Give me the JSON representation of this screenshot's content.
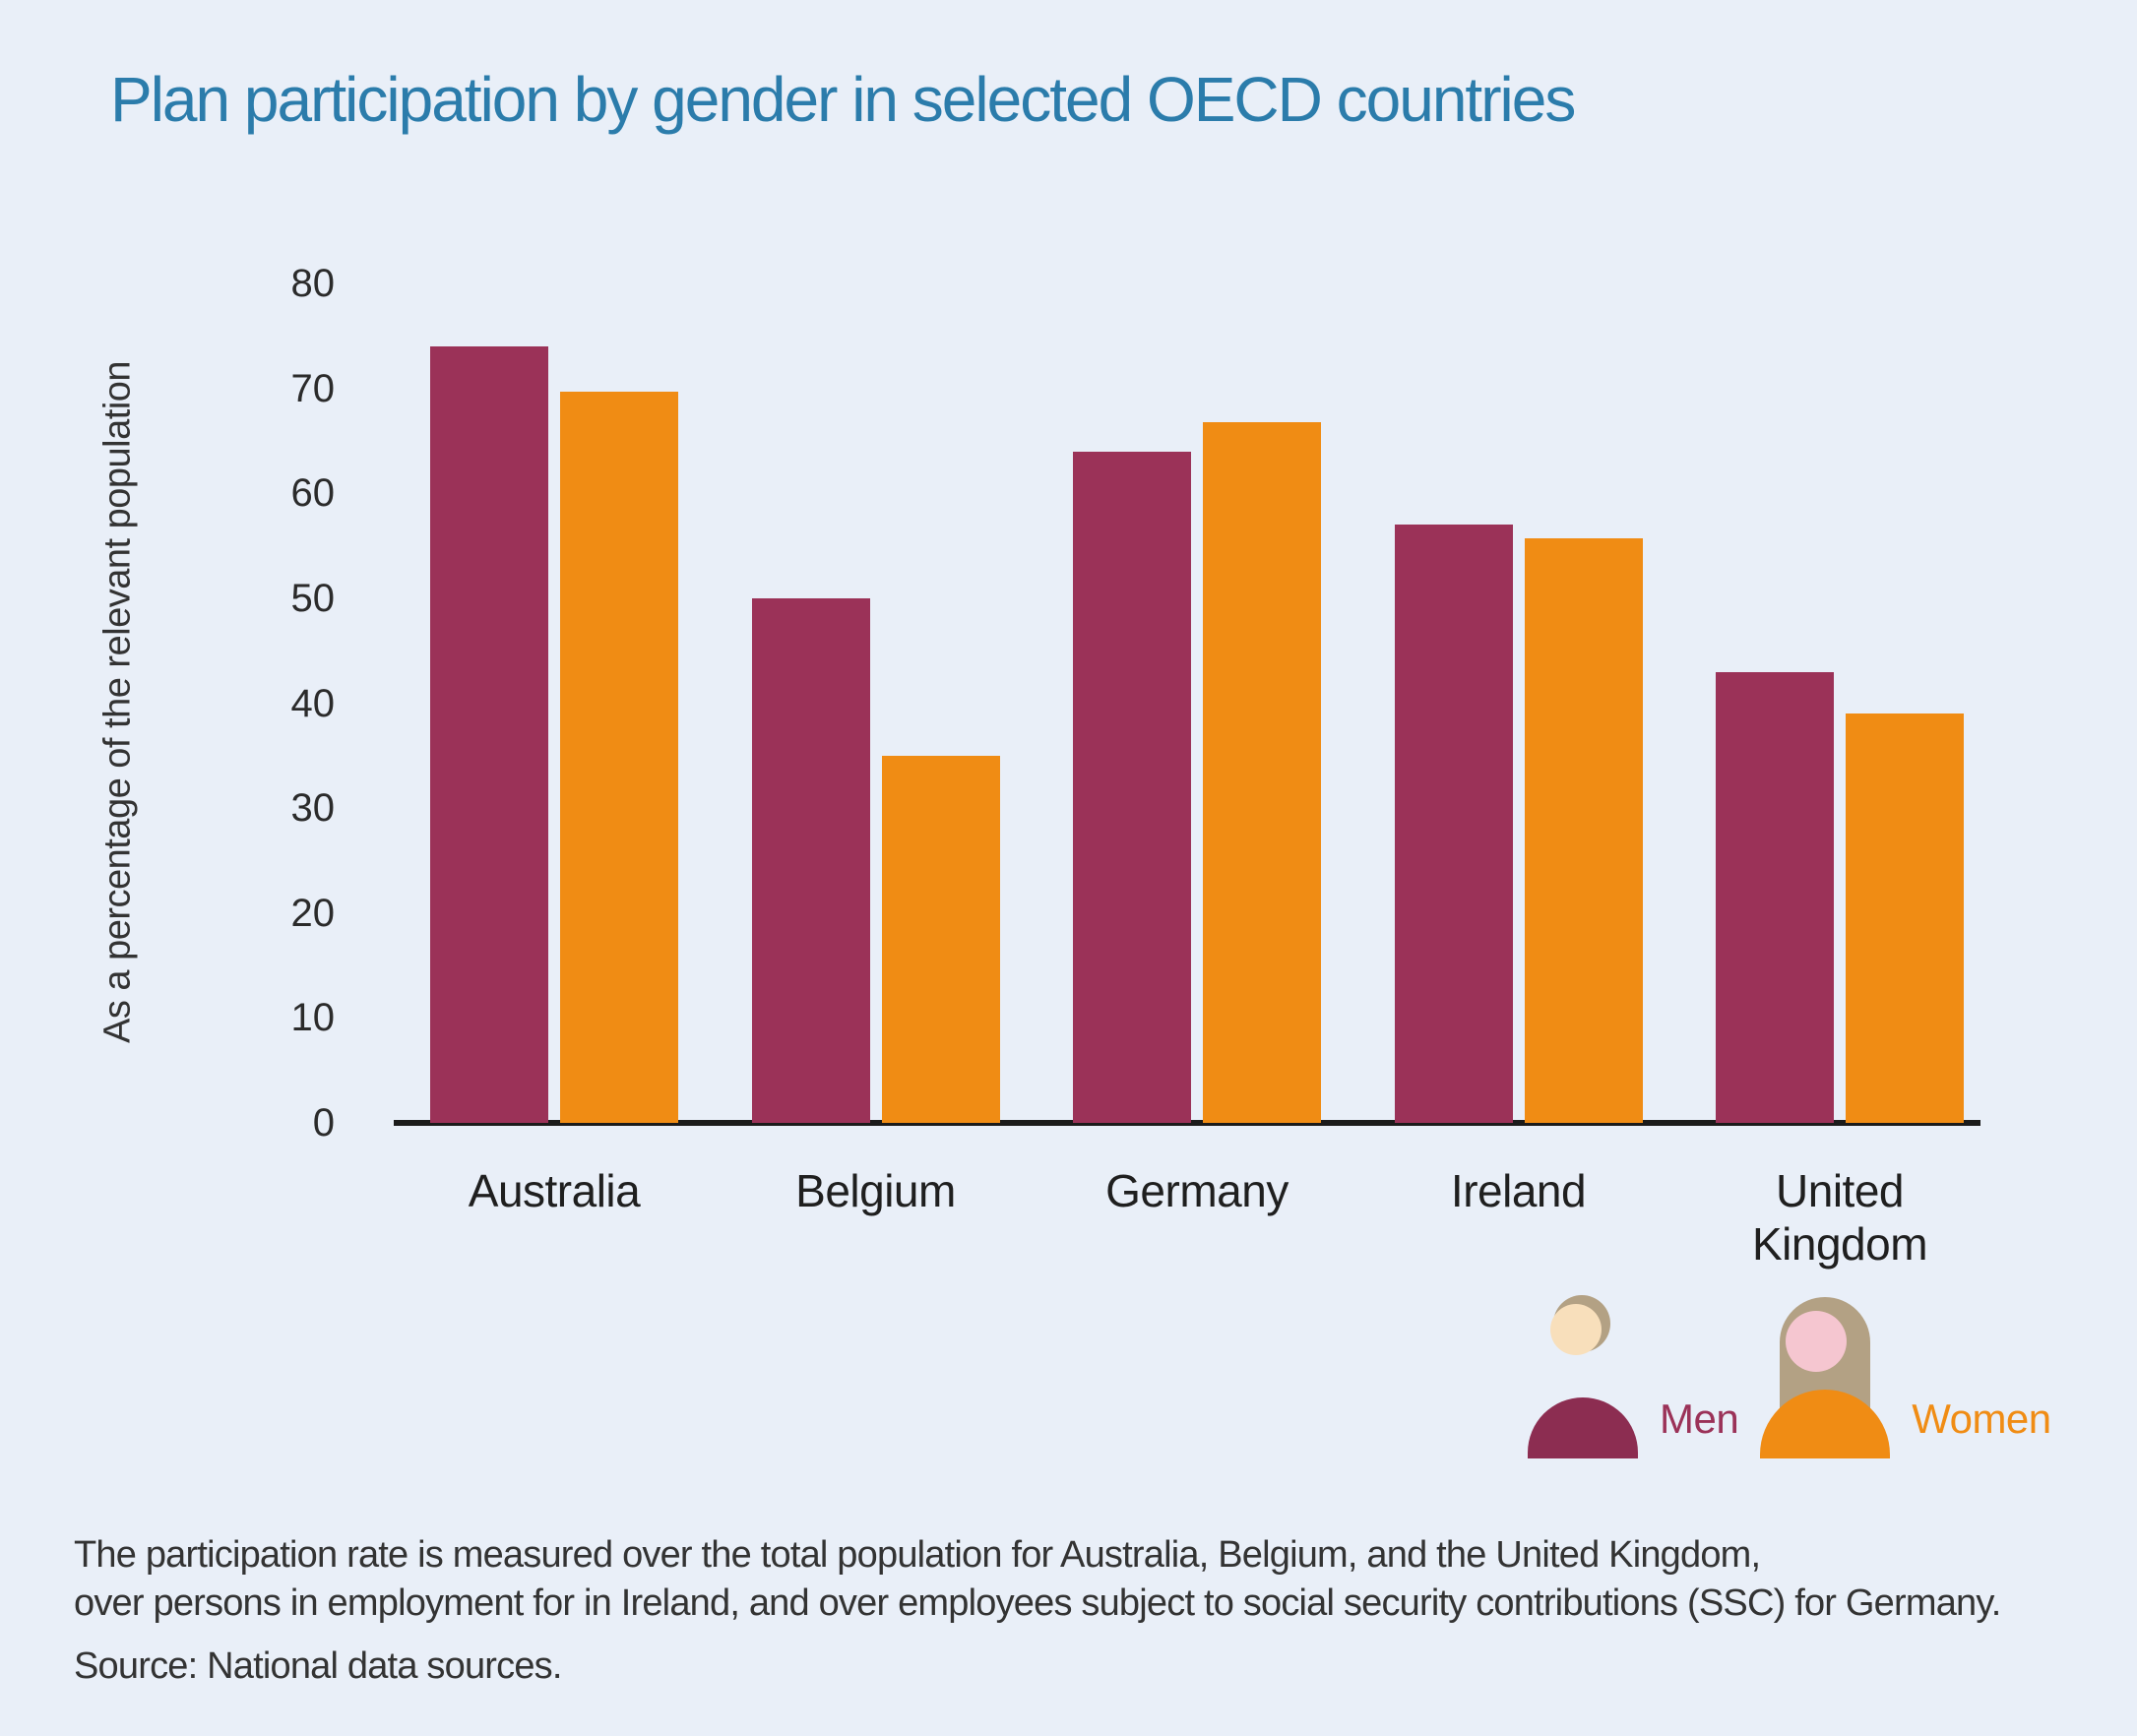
{
  "title": "Plan participation by gender in selected OECD countries",
  "chart_data": {
    "type": "bar",
    "categories": [
      "Australia",
      "Belgium",
      "Germany",
      "Ireland",
      "United Kingdom"
    ],
    "series": [
      {
        "name": "Men",
        "color": "#9b3258",
        "values": [
          74,
          50,
          64,
          57,
          43
        ]
      },
      {
        "name": "Women",
        "color": "#f08c14",
        "values": [
          69.7,
          35,
          66.8,
          55.7,
          39
        ]
      }
    ],
    "title": "Plan participation by gender in selected OECD countries",
    "xlabel": "",
    "ylabel": "As a percentage of the relevant population",
    "ylim": [
      0,
      80
    ],
    "yticks": [
      0,
      10,
      20,
      30,
      40,
      50,
      60,
      70,
      80
    ],
    "grid": false,
    "legend_position": "bottom-right"
  },
  "legend": {
    "men_label": "Men",
    "women_label": "Women",
    "men_icon": "man-person-icon",
    "women_icon": "woman-person-icon"
  },
  "notes": {
    "line1": "The participation rate is measured over the total population for Australia, Belgium, and the United Kingdom,",
    "line2": "over persons in employment for in Ireland, and over employees subject to social security contributions (SSC) for Germany.",
    "source": "Source: National data sources."
  },
  "colors": {
    "background": "#e9eff8",
    "title_text": "#2b7cab",
    "men_bar": "#9b3258",
    "women_bar": "#f08c14",
    "axis_line": "#1b1b1b",
    "tick_text": "#2b2b2b",
    "note_text": "#333333",
    "icon_hair": "#b3a184",
    "icon_skin_man": "#f8dfbb",
    "icon_skin_woman": "#f5c6d0",
    "icon_body_man": "#8c2d51",
    "icon_body_woman": "#f08c14"
  }
}
